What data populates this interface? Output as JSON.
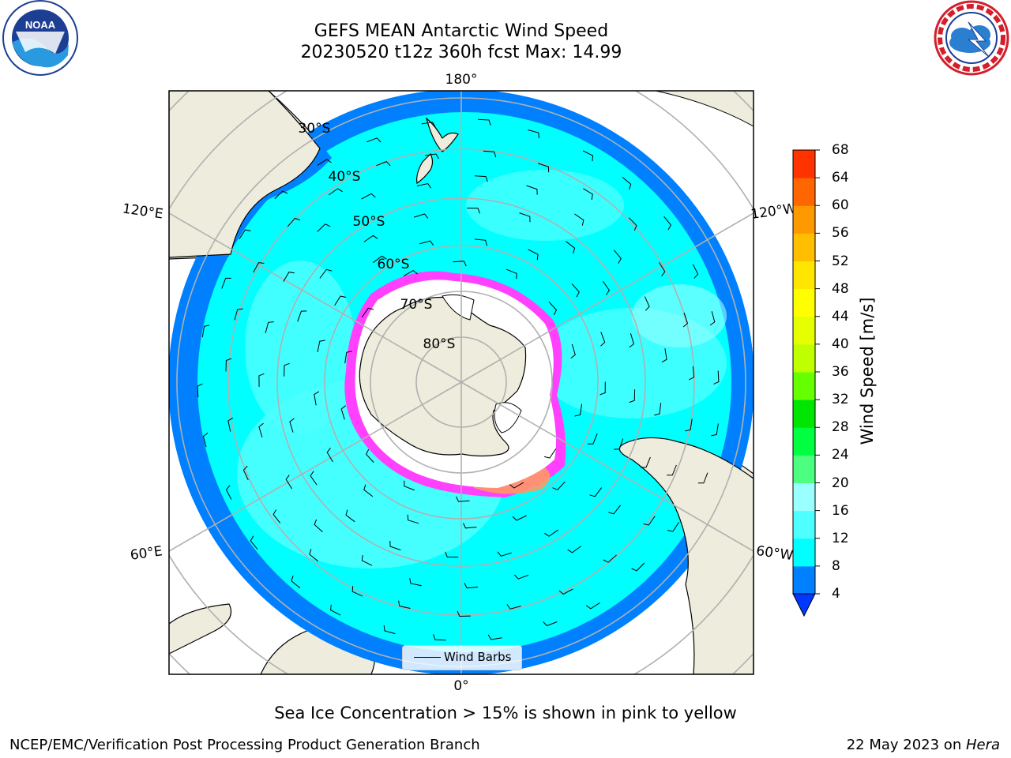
{
  "title": {
    "line1": "GEFS MEAN Antarctic Wind Speed",
    "line2": "20230520 t12z 360h fcst   Max: 14.99"
  },
  "logos": {
    "left": {
      "name": "NOAA",
      "ring_text": "NATIONAL OCEANIC AND ATMOSPHERIC ADMINISTRATION",
      "bottom_text": "U.S. DEPARTMENT OF COMMERCE"
    },
    "right": {
      "name": "NATIONAL WEATHER SERVICE"
    }
  },
  "map": {
    "projection": "south-polar-stereographic",
    "longitude_labels": {
      "top": "180°",
      "upper_left": "120°E",
      "upper_right": "120°W",
      "lower_left": "60°E",
      "lower_right": "60°W",
      "bottom": "0°"
    },
    "latitude_labels": [
      "30°S",
      "40°S",
      "50°S",
      "60°S",
      "70°S",
      "80°S"
    ],
    "legend": "Wind Barbs",
    "colors": {
      "land": "#eeecdc",
      "wind_4_8": "#0080ff",
      "wind_8_12": "#00ffff",
      "wind_12_16": "#4dffff",
      "ice_low": "#ff40ff",
      "ice_high": "#ff9966",
      "ice_shelf": "#ffffff",
      "grid": "#b0b0b0"
    }
  },
  "colorbar": {
    "label": "Wind Speed [m/s]",
    "ticks": [
      "68",
      "64",
      "60",
      "56",
      "52",
      "48",
      "44",
      "40",
      "36",
      "32",
      "28",
      "24",
      "20",
      "16",
      "12",
      "8",
      "4"
    ],
    "colors": [
      "#0038ff",
      "#0080ff",
      "#00ffff",
      "#4dffff",
      "#99ffff",
      "#4dff80",
      "#00ff40",
      "#00e600",
      "#66ff00",
      "#bfff00",
      "#e6ff00",
      "#ffff00",
      "#ffe600",
      "#ffbf00",
      "#ff9900",
      "#ff6600",
      "#ff3300",
      "#ff0000"
    ]
  },
  "footnote": "Sea Ice Concentration > 15% is shown in pink to yellow",
  "credit": "NCEP/EMC/Verification Post Processing Product Generation Branch",
  "run_date": {
    "text": "22 May 2023 on ",
    "host": "Hera"
  }
}
